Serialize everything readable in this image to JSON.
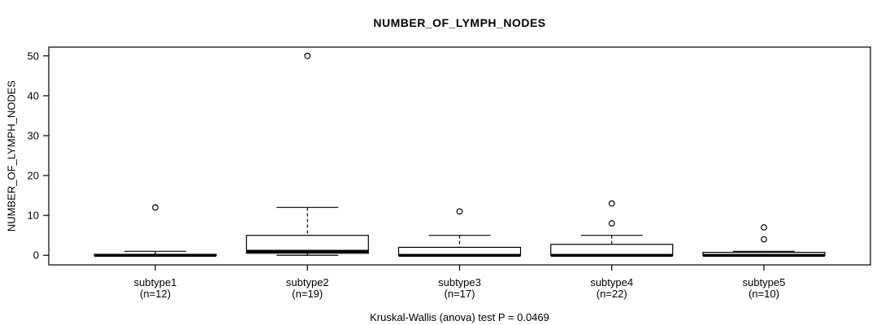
{
  "chart_data": {
    "type": "boxplot",
    "title": "NUMBER_OF_LYMPH_NODES",
    "ylabel": "NUMBER_OF_LYMPH_NODES",
    "xlabel": "",
    "caption": "Kruskal-Wallis (anova) test P = 0.0469",
    "ylim": [
      -2.4,
      52.2
    ],
    "yticks": [
      0,
      10,
      20,
      30,
      40,
      50
    ],
    "grid": false,
    "legend": "none",
    "categories": [
      "subtype1",
      "subtype2",
      "subtype3",
      "subtype4",
      "subtype5"
    ],
    "n_labels": [
      "(n=12)",
      "(n=19)",
      "(n=17)",
      "(n=22)",
      "(n=10)"
    ],
    "series": [
      {
        "name": "subtype1",
        "n": 12,
        "whisker_low": 0,
        "q1": 0,
        "median": 0,
        "q3": 0.25,
        "whisker_high": 1,
        "outliers": [
          12
        ]
      },
      {
        "name": "subtype2",
        "n": 19,
        "whisker_low": 0,
        "q1": 0.5,
        "median": 1,
        "q3": 5,
        "whisker_high": 12,
        "outliers": [
          50
        ]
      },
      {
        "name": "subtype3",
        "n": 17,
        "whisker_low": 0,
        "q1": 0,
        "median": 0,
        "q3": 2,
        "whisker_high": 5,
        "outliers": [
          11
        ]
      },
      {
        "name": "subtype4",
        "n": 22,
        "whisker_low": 0,
        "q1": 0,
        "median": 0,
        "q3": 2.75,
        "whisker_high": 5,
        "outliers": [
          8,
          13
        ]
      },
      {
        "name": "subtype5",
        "n": 10,
        "whisker_low": 0,
        "q1": 0,
        "median": 0,
        "q3": 0.75,
        "whisker_high": 1,
        "outliers": [
          4,
          7
        ]
      }
    ],
    "colors": {
      "line": "#000000",
      "box_fill": "#ffffff",
      "background": "#ffffff"
    }
  }
}
